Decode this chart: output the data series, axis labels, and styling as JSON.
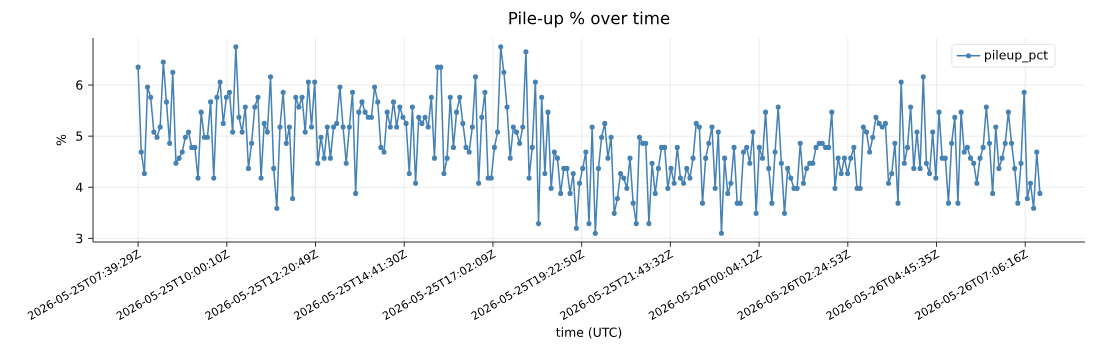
{
  "chart_data": {
    "type": "line",
    "title": "Pile-up % over time",
    "xlabel": "time (UTC)",
    "ylabel": "%",
    "x": [
      "2026-05-25T07:39:29",
      "2026-05-25T07:44:29",
      "2026-05-25T07:49:29",
      "2026-05-25T07:54:29",
      "2026-05-25T07:59:29",
      "2026-05-25T08:04:29",
      "2026-05-25T08:09:29",
      "2026-05-25T08:14:29",
      "2026-05-25T08:19:29",
      "2026-05-25T08:24:29",
      "2026-05-25T08:29:29",
      "2026-05-25T08:34:29",
      "2026-05-25T08:39:29",
      "2026-05-25T08:44:29",
      "2026-05-25T08:49:29",
      "2026-05-25T08:54:29",
      "2026-05-25T08:59:29",
      "2026-05-25T09:04:29",
      "2026-05-25T09:09:29",
      "2026-05-25T09:14:29",
      "2026-05-25T09:19:29",
      "2026-05-25T09:24:29",
      "2026-05-25T09:29:29",
      "2026-05-25T09:34:29",
      "2026-05-25T09:39:29",
      "2026-05-25T09:44:29",
      "2026-05-25T09:49:29",
      "2026-05-25T09:54:29",
      "2026-05-25T09:59:29",
      "2026-05-25T10:04:29",
      "2026-05-25T10:09:29",
      "2026-05-25T10:14:29",
      "2026-05-25T10:19:29",
      "2026-05-25T10:24:29",
      "2026-05-25T10:29:29",
      "2026-05-25T10:34:29",
      "2026-05-25T10:39:29",
      "2026-05-25T10:44:29",
      "2026-05-25T10:49:29",
      "2026-05-25T10:54:29",
      "2026-05-25T10:59:29",
      "2026-05-25T11:04:29",
      "2026-05-25T11:09:29",
      "2026-05-25T11:14:29",
      "2026-05-25T11:19:29",
      "2026-05-25T11:24:29",
      "2026-05-25T11:29:29",
      "2026-05-25T11:34:29",
      "2026-05-25T11:39:29",
      "2026-05-25T11:44:29",
      "2026-05-25T11:49:29",
      "2026-05-25T11:54:29",
      "2026-05-25T11:59:29",
      "2026-05-25T12:04:29",
      "2026-05-25T12:09:29",
      "2026-05-25T12:14:29",
      "2026-05-25T12:19:29",
      "2026-05-25T12:24:29",
      "2026-05-25T12:29:29",
      "2026-05-25T12:34:29",
      "2026-05-25T12:39:29",
      "2026-05-25T12:44:29",
      "2026-05-25T12:49:29",
      "2026-05-25T12:54:29",
      "2026-05-25T12:59:29",
      "2026-05-25T13:04:29",
      "2026-05-25T13:09:29",
      "2026-05-25T13:14:29",
      "2026-05-25T13:19:29",
      "2026-05-25T13:24:29",
      "2026-05-25T13:29:29",
      "2026-05-25T13:34:29",
      "2026-05-25T13:39:29",
      "2026-05-25T13:44:29",
      "2026-05-25T13:49:29",
      "2026-05-25T13:54:29",
      "2026-05-25T13:59:29",
      "2026-05-25T14:04:29",
      "2026-05-25T14:09:29",
      "2026-05-25T14:14:29",
      "2026-05-25T14:19:29",
      "2026-05-25T14:24:29",
      "2026-05-25T14:29:29",
      "2026-05-25T14:34:29",
      "2026-05-25T14:39:29",
      "2026-05-25T14:44:29",
      "2026-05-25T14:49:29",
      "2026-05-25T14:54:29",
      "2026-05-25T14:59:29",
      "2026-05-25T15:04:29",
      "2026-05-25T15:09:29",
      "2026-05-25T15:14:29",
      "2026-05-25T15:19:29",
      "2026-05-25T15:24:29",
      "2026-05-25T15:29:29",
      "2026-05-25T15:34:29",
      "2026-05-25T15:39:29",
      "2026-05-25T15:44:29",
      "2026-05-25T15:49:29",
      "2026-05-25T15:54:29",
      "2026-05-25T15:59:29",
      "2026-05-25T16:04:29",
      "2026-05-25T16:09:29",
      "2026-05-25T16:14:29",
      "2026-05-25T16:19:29",
      "2026-05-25T16:24:29",
      "2026-05-25T16:29:29",
      "2026-05-25T16:34:29",
      "2026-05-25T16:39:29",
      "2026-05-25T16:44:29",
      "2026-05-25T16:49:29",
      "2026-05-25T16:54:29",
      "2026-05-25T16:59:29",
      "2026-05-25T17:04:29",
      "2026-05-25T17:09:29",
      "2026-05-25T17:14:29",
      "2026-05-25T17:19:29",
      "2026-05-25T17:24:29",
      "2026-05-25T17:29:29",
      "2026-05-25T17:34:29",
      "2026-05-25T17:39:29",
      "2026-05-25T17:44:29",
      "2026-05-25T17:49:29",
      "2026-05-25T17:54:29",
      "2026-05-25T17:59:29",
      "2026-05-25T18:04:29",
      "2026-05-25T18:09:29",
      "2026-05-25T18:14:29",
      "2026-05-25T18:19:29",
      "2026-05-25T18:24:29",
      "2026-05-25T18:29:29",
      "2026-05-25T18:34:29",
      "2026-05-25T18:39:29",
      "2026-05-25T18:44:29",
      "2026-05-25T18:49:29",
      "2026-05-25T18:54:29",
      "2026-05-25T18:59:29",
      "2026-05-25T19:04:29",
      "2026-05-25T19:09:29",
      "2026-05-25T19:14:29",
      "2026-05-25T19:19:29",
      "2026-05-25T19:24:29",
      "2026-05-25T19:29:29",
      "2026-05-25T19:34:29",
      "2026-05-25T19:39:29",
      "2026-05-25T19:44:29",
      "2026-05-25T19:49:29",
      "2026-05-25T19:54:29",
      "2026-05-25T19:59:29",
      "2026-05-25T20:04:29",
      "2026-05-25T20:09:29",
      "2026-05-25T20:14:29",
      "2026-05-25T20:19:29",
      "2026-05-25T20:24:29",
      "2026-05-25T20:29:29",
      "2026-05-25T20:34:29",
      "2026-05-25T20:39:29",
      "2026-05-25T20:44:29",
      "2026-05-25T20:49:29",
      "2026-05-25T20:54:29",
      "2026-05-25T20:59:29",
      "2026-05-25T21:04:29",
      "2026-05-25T21:09:29",
      "2026-05-25T21:14:29",
      "2026-05-25T21:19:29",
      "2026-05-25T21:24:29",
      "2026-05-25T21:29:29",
      "2026-05-25T21:34:29",
      "2026-05-25T21:39:29",
      "2026-05-25T21:44:29",
      "2026-05-25T21:49:29",
      "2026-05-25T21:54:29",
      "2026-05-25T21:59:29",
      "2026-05-25T22:04:29",
      "2026-05-25T22:09:29",
      "2026-05-25T22:14:29",
      "2026-05-25T22:19:29",
      "2026-05-25T22:24:29",
      "2026-05-25T22:29:29",
      "2026-05-25T22:34:29",
      "2026-05-25T22:39:29",
      "2026-05-25T22:44:29",
      "2026-05-25T22:49:29",
      "2026-05-25T22:54:29",
      "2026-05-25T22:59:29",
      "2026-05-25T23:04:29",
      "2026-05-25T23:09:29",
      "2026-05-25T23:14:29",
      "2026-05-25T23:19:29",
      "2026-05-25T23:24:29",
      "2026-05-25T23:29:29",
      "2026-05-25T23:34:29",
      "2026-05-25T23:39:29",
      "2026-05-25T23:44:29",
      "2026-05-25T23:49:29",
      "2026-05-25T23:54:29",
      "2026-05-25T23:59:29",
      "2026-05-26T00:04:29",
      "2026-05-26T00:09:29",
      "2026-05-26T00:14:29",
      "2026-05-26T00:19:29",
      "2026-05-26T00:24:29",
      "2026-05-26T00:29:29",
      "2026-05-26T00:34:29",
      "2026-05-26T00:39:29",
      "2026-05-26T00:44:29",
      "2026-05-26T00:49:29",
      "2026-05-26T00:54:29",
      "2026-05-26T00:59:29",
      "2026-05-26T01:04:29",
      "2026-05-26T01:09:29",
      "2026-05-26T01:14:29",
      "2026-05-26T01:19:29",
      "2026-05-26T01:24:29",
      "2026-05-26T01:29:29",
      "2026-05-26T01:34:29",
      "2026-05-26T01:39:29",
      "2026-05-26T01:44:29",
      "2026-05-26T01:49:29",
      "2026-05-26T01:54:29",
      "2026-05-26T01:59:29",
      "2026-05-26T02:04:29",
      "2026-05-26T02:09:29",
      "2026-05-26T02:14:29",
      "2026-05-26T02:19:29",
      "2026-05-26T02:24:29",
      "2026-05-26T02:29:29",
      "2026-05-26T02:34:29",
      "2026-05-26T02:39:29",
      "2026-05-26T02:44:29",
      "2026-05-26T02:49:29",
      "2026-05-26T02:54:29",
      "2026-05-26T02:59:29",
      "2026-05-26T03:04:29",
      "2026-05-26T03:09:29",
      "2026-05-26T03:14:29",
      "2026-05-26T03:19:29",
      "2026-05-26T03:24:29",
      "2026-05-26T03:29:29",
      "2026-05-26T03:34:29",
      "2026-05-26T03:39:29",
      "2026-05-26T03:44:29",
      "2026-05-26T03:49:29",
      "2026-05-26T03:54:29",
      "2026-05-26T03:59:29",
      "2026-05-26T04:04:29",
      "2026-05-26T04:09:29",
      "2026-05-26T04:14:29",
      "2026-05-26T04:19:29",
      "2026-05-26T04:24:29",
      "2026-05-26T04:29:29",
      "2026-05-26T04:34:29",
      "2026-05-26T04:39:29",
      "2026-05-26T04:44:29",
      "2026-05-26T04:49:29",
      "2026-05-26T04:54:29",
      "2026-05-26T04:59:29",
      "2026-05-26T05:04:29",
      "2026-05-26T05:09:29",
      "2026-05-26T05:14:29",
      "2026-05-26T05:19:29",
      "2026-05-26T05:24:29",
      "2026-05-26T05:29:29",
      "2026-05-26T05:34:29",
      "2026-05-26T05:39:29",
      "2026-05-26T05:44:29",
      "2026-05-26T05:49:29",
      "2026-05-26T05:54:29",
      "2026-05-26T05:59:29",
      "2026-05-26T06:04:29",
      "2026-05-26T06:09:29",
      "2026-05-26T06:14:29",
      "2026-05-26T06:19:29",
      "2026-05-26T06:24:29",
      "2026-05-26T06:29:29",
      "2026-05-26T06:34:29",
      "2026-05-26T06:39:29",
      "2026-05-26T06:44:29",
      "2026-05-26T06:49:29",
      "2026-05-26T06:54:29",
      "2026-05-26T06:59:29",
      "2026-05-26T07:04:29",
      "2026-05-26T07:09:29",
      "2026-05-26T07:14:29",
      "2026-05-26T07:19:29",
      "2026-05-26T07:24:29",
      "2026-05-26T07:29:29"
    ],
    "series": [
      {
        "name": "pileup_pct",
        "color": "#4682b4",
        "values": [
          6.35,
          4.69,
          4.27,
          5.96,
          5.76,
          5.08,
          4.98,
          5.18,
          6.45,
          5.67,
          4.86,
          6.25,
          4.47,
          4.57,
          4.69,
          4.98,
          5.08,
          4.78,
          4.78,
          4.18,
          5.47,
          4.98,
          4.98,
          5.67,
          4.18,
          5.76,
          6.06,
          5.25,
          5.76,
          5.86,
          5.08,
          6.75,
          5.37,
          5.08,
          5.57,
          4.37,
          4.86,
          5.57,
          5.76,
          4.18,
          5.25,
          5.08,
          6.16,
          4.37,
          3.59,
          5.18,
          5.86,
          4.86,
          5.18,
          3.78,
          5.76,
          5.57,
          5.76,
          5.08,
          6.06,
          5.18,
          6.06,
          4.47,
          4.98,
          4.57,
          5.18,
          4.57,
          5.18,
          5.25,
          5.96,
          5.18,
          4.47,
          5.18,
          5.86,
          3.88,
          5.47,
          5.67,
          5.47,
          5.37,
          5.37,
          5.96,
          5.67,
          4.78,
          4.69,
          5.47,
          5.18,
          5.67,
          5.18,
          5.57,
          5.37,
          5.25,
          4.27,
          5.57,
          4.08,
          5.37,
          5.25,
          5.37,
          5.18,
          5.76,
          4.57,
          6.35,
          6.35,
          4.27,
          4.57,
          5.76,
          4.78,
          5.47,
          5.76,
          5.25,
          4.78,
          4.69,
          5.18,
          6.16,
          4.08,
          5.37,
          5.86,
          4.18,
          4.18,
          4.78,
          5.08,
          6.75,
          6.25,
          5.57,
          4.57,
          5.18,
          5.08,
          4.86,
          5.18,
          6.65,
          4.18,
          4.78,
          6.06,
          3.29,
          5.76,
          4.27,
          5.47,
          3.98,
          4.69,
          4.57,
          3.88,
          4.37,
          4.37,
          3.88,
          4.27,
          3.2,
          4.08,
          4.37,
          4.69,
          3.29,
          5.18,
          3.1,
          4.37,
          4.98,
          5.25,
          4.57,
          4.98,
          3.49,
          3.78,
          4.27,
          4.18,
          3.98,
          4.57,
          3.69,
          3.29,
          4.98,
          4.86,
          4.86,
          3.29,
          4.47,
          3.88,
          4.37,
          4.78,
          4.78,
          3.98,
          4.37,
          4.08,
          4.78,
          4.18,
          4.08,
          4.37,
          4.18,
          4.57,
          5.25,
          5.18,
          3.69,
          4.57,
          4.86,
          5.18,
          3.98,
          5.08,
          3.1,
          4.57,
          3.88,
          4.08,
          4.78,
          3.69,
          3.69,
          4.69,
          4.78,
          4.47,
          5.08,
          3.49,
          4.78,
          4.57,
          5.47,
          4.37,
          3.69,
          4.69,
          5.57,
          4.47,
          3.49,
          4.37,
          4.18,
          3.98,
          3.98,
          4.86,
          4.08,
          4.37,
          4.47,
          4.47,
          4.78,
          4.86,
          4.86,
          4.78,
          4.78,
          5.47,
          3.98,
          4.57,
          4.27,
          4.57,
          4.27,
          4.57,
          4.78,
          3.98,
          3.98,
          5.18,
          5.08,
          4.69,
          4.98,
          5.37,
          5.25,
          5.18,
          5.25,
          4.08,
          4.27,
          4.86,
          3.69,
          6.06,
          4.47,
          4.78,
          5.57,
          4.37,
          5.08,
          4.37,
          6.16,
          4.47,
          4.27,
          5.08,
          4.18,
          5.47,
          4.57,
          4.57,
          3.69,
          4.86,
          5.37,
          3.69,
          5.47,
          4.69,
          4.78,
          4.57,
          4.47,
          4.08,
          4.57,
          4.78,
          5.57,
          4.86,
          3.88,
          5.18,
          4.37,
          4.57,
          4.86,
          5.47,
          4.86,
          4.37,
          3.69,
          4.47,
          5.86,
          3.78,
          4.08,
          3.59,
          4.69,
          3.88
        ]
      }
    ],
    "xlim": [
      "2026-05-25T06:27:59",
      "2026-05-26T08:40:59"
    ],
    "xticks": [
      {
        "value": "2026-05-25T07:39:29",
        "label": "2026-05-25T07:39:29Z"
      },
      {
        "value": "2026-05-25T10:00:10",
        "label": "2026-05-25T10:00:10Z"
      },
      {
        "value": "2026-05-25T12:20:49",
        "label": "2026-05-25T12:20:49Z"
      },
      {
        "value": "2026-05-25T14:41:30",
        "label": "2026-05-25T14:41:30Z"
      },
      {
        "value": "2026-05-25T17:02:09",
        "label": "2026-05-25T17:02:09Z"
      },
      {
        "value": "2026-05-25T19:22:50",
        "label": "2026-05-25T19:22:50Z"
      },
      {
        "value": "2026-05-25T21:43:32",
        "label": "2026-05-25T21:43:32Z"
      },
      {
        "value": "2026-05-26T00:04:12",
        "label": "2026-05-26T00:04:12Z"
      },
      {
        "value": "2026-05-26T02:24:53",
        "label": "2026-05-26T02:24:53Z"
      },
      {
        "value": "2026-05-26T04:45:35",
        "label": "2026-05-26T04:45:35Z"
      },
      {
        "value": "2026-05-26T07:06:16",
        "label": "2026-05-26T07:06:16Z"
      }
    ],
    "ylim": [
      2.93,
      6.92
    ],
    "yticks": [
      3,
      4,
      5,
      6
    ],
    "grid": true,
    "legend": "top right",
    "marker": "circle",
    "line_style": "solid"
  }
}
